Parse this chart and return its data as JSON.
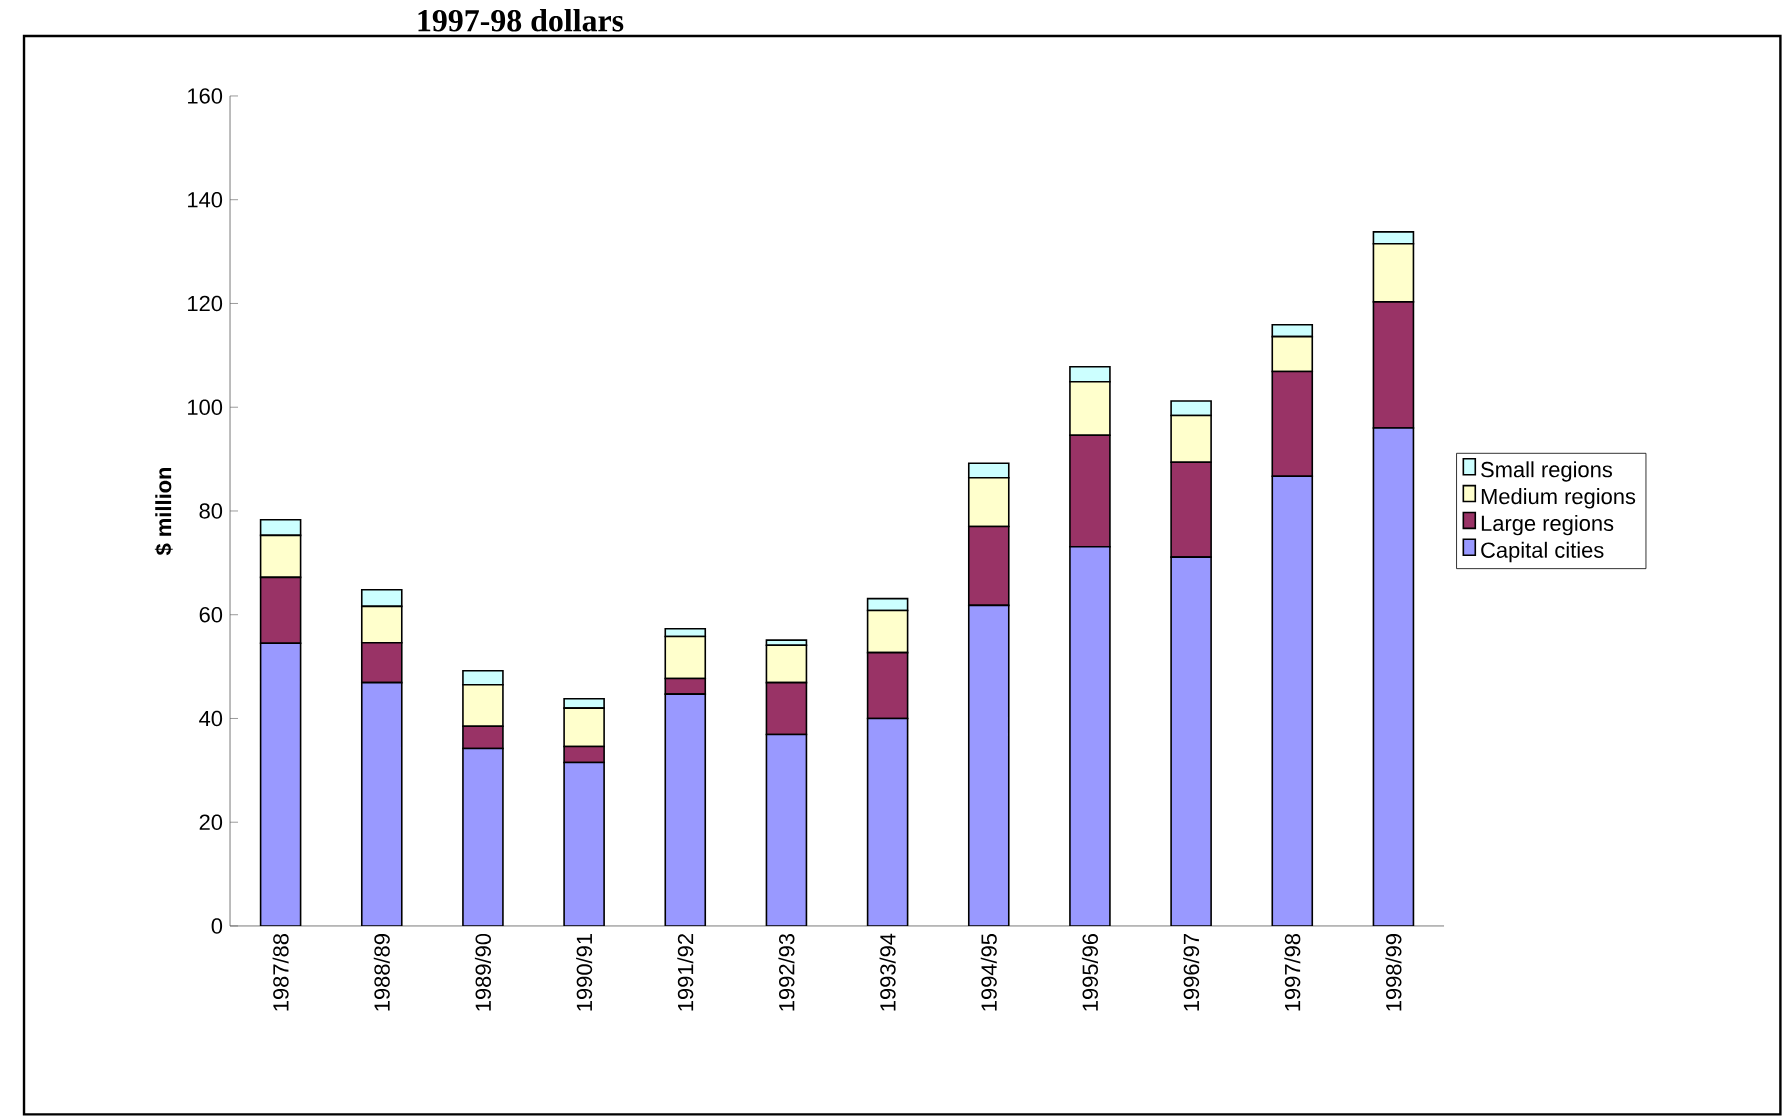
{
  "chart_data": {
    "type": "bar",
    "stacked": true,
    "title": "1997-98 dollars",
    "ylabel": "$ million",
    "categories": [
      "1987/88",
      "1988/89",
      "1989/90",
      "1990/91",
      "1991/92",
      "1992/93",
      "1993/94",
      "1994/95",
      "1995/96",
      "1996/97",
      "1997/98",
      "1998/99"
    ],
    "series": [
      {
        "name": "Capital cities",
        "color": "#9999ff",
        "values": [
          54.5,
          46.9,
          34.2,
          31.5,
          44.7,
          36.9,
          40.0,
          61.8,
          73.1,
          71.1,
          86.7,
          96.0
        ]
      },
      {
        "name": "Large regions",
        "color": "#993366",
        "values": [
          12.7,
          7.7,
          4.3,
          3.1,
          3.0,
          10.0,
          12.7,
          15.2,
          21.5,
          18.3,
          20.2,
          24.3
        ]
      },
      {
        "name": "Medium regions",
        "color": "#ffffcc",
        "values": [
          8.1,
          7.0,
          8.0,
          7.4,
          8.1,
          7.2,
          8.1,
          9.4,
          10.3,
          9.0,
          6.7,
          11.2
        ]
      },
      {
        "name": "Small regions",
        "color": "#ccffff",
        "values": [
          3.0,
          3.2,
          2.7,
          1.8,
          1.5,
          1.0,
          2.3,
          2.8,
          2.9,
          2.8,
          2.3,
          2.3
        ]
      }
    ],
    "ylim": [
      0,
      160
    ],
    "yticks": [
      0,
      20,
      40,
      60,
      80,
      100,
      120,
      140,
      160
    ],
    "legend": "right",
    "grid": false
  }
}
